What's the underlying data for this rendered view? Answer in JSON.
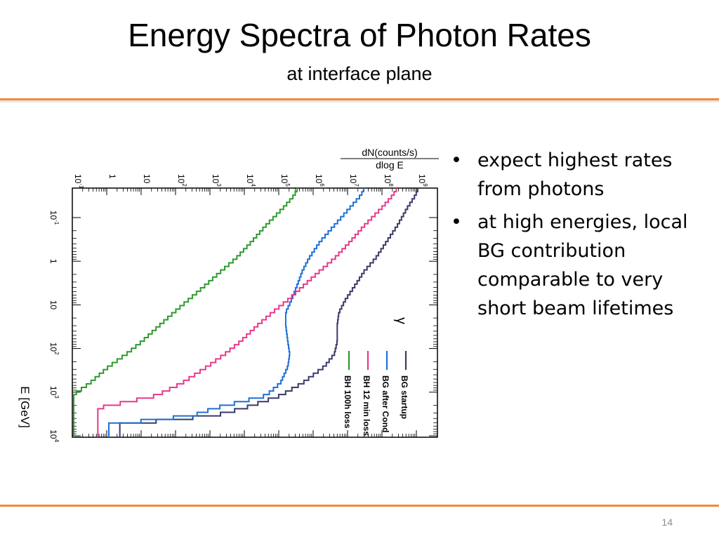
{
  "slide": {
    "title": "Energy Spectra of Photon Rates",
    "subtitle": "at interface plane",
    "bullets": [
      "expect highest rates from photons",
      "at high energies, local BG contribution comparable to very short beam lifetimes"
    ],
    "page_number": "14",
    "accent_color": "#f08a3c"
  },
  "chart_data": {
    "type": "line",
    "orientation": "rotated-90",
    "title": "",
    "xlabel": "E [GeV]",
    "ylabel": "dN(counts/s) / dlog E",
    "ylabel_numerator": "dN(counts/s)",
    "ylabel_denominator": "dlog E",
    "annotation": "γ",
    "x_scale": "log",
    "y_scale": "log",
    "xlim": [
      0.01,
      10000
    ],
    "ylim": [
      0.1,
      1000000000
    ],
    "x_tick_labels": [
      {
        "value": 0.1,
        "base": "10",
        "exp": "-1"
      },
      {
        "value": 1,
        "base": "1",
        "exp": ""
      },
      {
        "value": 10,
        "base": "10",
        "exp": ""
      },
      {
        "value": 100,
        "base": "10",
        "exp": "2"
      },
      {
        "value": 1000,
        "base": "10",
        "exp": "3"
      },
      {
        "value": 10000,
        "base": "10",
        "exp": "4"
      }
    ],
    "y_tick_labels": [
      {
        "value": 0.1,
        "base": "10",
        "exp": "-1"
      },
      {
        "value": 1,
        "base": "1",
        "exp": ""
      },
      {
        "value": 10,
        "base": "10",
        "exp": ""
      },
      {
        "value": 100,
        "base": "10",
        "exp": "2"
      },
      {
        "value": 1000,
        "base": "10",
        "exp": "3"
      },
      {
        "value": 10000,
        "base": "10",
        "exp": "4"
      },
      {
        "value": 100000,
        "base": "10",
        "exp": "5"
      },
      {
        "value": 1000000,
        "base": "10",
        "exp": "6"
      },
      {
        "value": 10000000,
        "base": "10",
        "exp": "7"
      },
      {
        "value": 100000000,
        "base": "10",
        "exp": "8"
      },
      {
        "value": 1000000000,
        "base": "10",
        "exp": "9"
      }
    ],
    "legend_position": "bottom-right",
    "series": [
      {
        "name": "BG startup",
        "color": "#3a3a6a",
        "x": [
          0.01,
          0.015,
          0.03,
          0.08,
          0.2,
          0.5,
          1,
          2,
          5,
          10,
          20,
          50,
          100,
          200,
          500,
          1000,
          2000,
          3000,
          5000,
          10000
        ],
        "y": [
          300000000,
          250000000,
          150000000,
          80000000,
          40000000,
          20000000,
          10000000,
          6000000,
          3000000,
          2000000,
          1800000,
          1800000,
          1500000,
          800000,
          200000,
          50000,
          5000,
          800,
          2,
          2
        ]
      },
      {
        "name": "BG after Cond",
        "color": "#1f6fd8",
        "x": [
          0.01,
          0.015,
          0.03,
          0.08,
          0.2,
          0.5,
          1,
          2,
          5,
          10,
          20,
          50,
          100,
          200,
          500,
          1000,
          2000,
          3000,
          5000,
          10000
        ],
        "y": [
          10000000,
          8000000,
          4000000,
          1500000,
          600000,
          300000,
          200000,
          150000,
          100000,
          70000,
          70000,
          80000,
          90000,
          80000,
          50000,
          20000,
          800,
          200,
          1,
          1
        ]
      },
      {
        "name": "BH 12 min loss",
        "color": "#e8388a",
        "x": [
          0.01,
          0.015,
          0.03,
          0.08,
          0.2,
          0.5,
          1,
          2,
          5,
          10,
          20,
          50,
          100,
          200,
          500,
          1000,
          2000,
          3000,
          5000,
          10000
        ],
        "y": [
          80000000,
          60000000,
          30000000,
          10000000,
          4000000,
          1500000,
          600000,
          250000,
          80000,
          30000,
          12000,
          4000,
          1500,
          500,
          100,
          20,
          0.5,
          0.5,
          0.5,
          0.5
        ]
      },
      {
        "name": "BH 100h loss",
        "color": "#2e9a2e",
        "x": [
          0.01,
          0.015,
          0.03,
          0.08,
          0.2,
          0.5,
          1,
          2,
          5,
          10,
          20,
          50,
          100,
          200,
          500,
          1000,
          2000,
          3000,
          5000,
          10000
        ],
        "y": [
          150000,
          120000,
          60000,
          20000,
          8000,
          3000,
          1200,
          500,
          150,
          60,
          25,
          8,
          3,
          1,
          0.3,
          0.1,
          0.1,
          0.1,
          0.1,
          0.1
        ]
      }
    ]
  }
}
